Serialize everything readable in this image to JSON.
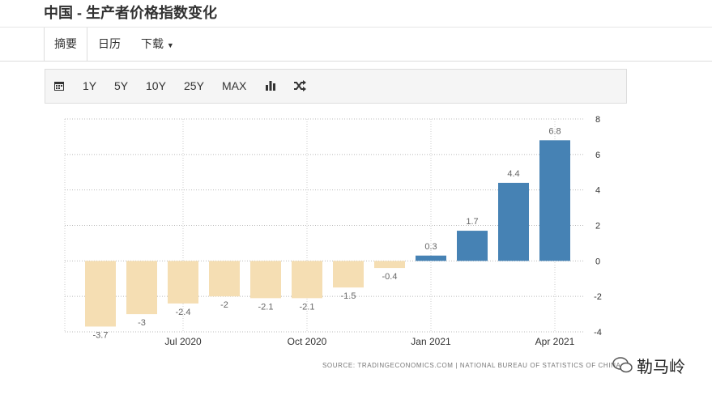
{
  "header": {
    "title": "中国 - 生产者价格指数变化"
  },
  "tabs": [
    "摘要",
    "日历",
    "下载"
  ],
  "toolbar": [
    "1Y",
    "5Y",
    "10Y",
    "25Y",
    "MAX"
  ],
  "source": "SOURCE: TRADINGECONOMICS.COM | NATIONAL BUREAU OF STATISTICS OF CHINA",
  "watermark": "勒马岭",
  "chart_data": {
    "type": "bar",
    "categories": [
      null,
      null,
      "Jul 2020",
      null,
      null,
      "Oct 2020",
      null,
      null,
      "Jan 2021",
      null,
      null,
      "Apr 2021"
    ],
    "values": [
      -3.7,
      -3,
      -2.4,
      -2,
      -2.1,
      -2.1,
      -1.5,
      -0.4,
      0.3,
      1.7,
      4.4,
      6.8
    ],
    "positive_color": "#4682b4",
    "negative_color": "#f5deb3",
    "ylim": [
      -4,
      8
    ],
    "yticks": [
      -4,
      -2,
      0,
      2,
      4,
      6,
      8
    ],
    "grid": true,
    "y_axis_side": "right"
  }
}
